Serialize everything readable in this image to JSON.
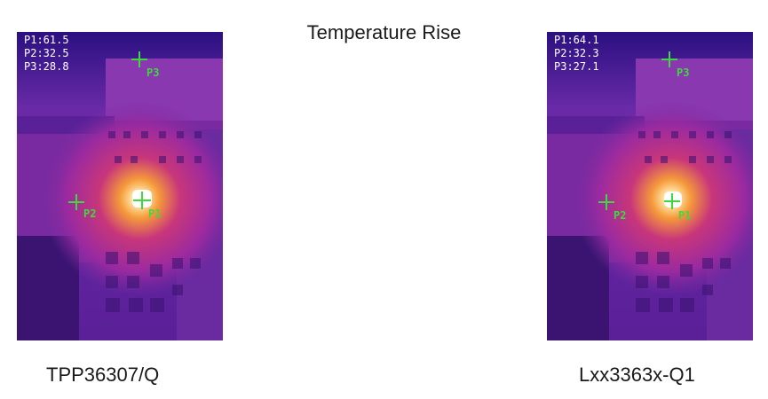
{
  "title": "Temperature Rise",
  "images": [
    {
      "caption": "TPP36307/Q",
      "readouts": [
        "P1:61.5",
        "P2:32.5",
        "P3:28.8"
      ],
      "markers": [
        "P1",
        "P2",
        "P3"
      ]
    },
    {
      "caption": "Lxx3363x-Q1",
      "readouts": [
        "P1:64.1",
        "P2:32.3",
        "P3:27.1"
      ],
      "markers": [
        "P1",
        "P2",
        "P3"
      ]
    }
  ],
  "colors": {
    "marker": "#3ed93e",
    "background_cold": "#2a1080",
    "board": "#7a2aa0",
    "hotspot": "#ffffff"
  }
}
